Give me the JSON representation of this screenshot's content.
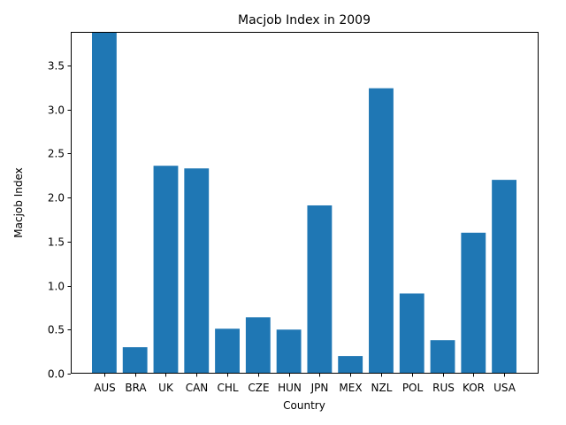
{
  "chart_data": {
    "type": "bar",
    "title": "Macjob Index in 2009",
    "xlabel": "Country",
    "ylabel": "Macjob Index",
    "categories": [
      "AUS",
      "BRA",
      "UK",
      "CAN",
      "CHL",
      "CZE",
      "HUN",
      "JPN",
      "MEX",
      "NZL",
      "POL",
      "RUS",
      "KOR",
      "USA"
    ],
    "values": [
      3.88,
      0.3,
      2.36,
      2.33,
      0.51,
      0.64,
      0.5,
      1.91,
      0.2,
      3.24,
      0.91,
      0.38,
      1.6,
      2.2
    ],
    "ylim": [
      0,
      3.88
    ],
    "yticks": [
      "0.0",
      "0.5",
      "1.0",
      "1.5",
      "2.0",
      "2.5",
      "3.0",
      "3.5"
    ],
    "bar_color": "#1f77b4",
    "grid": false,
    "legend": false
  }
}
